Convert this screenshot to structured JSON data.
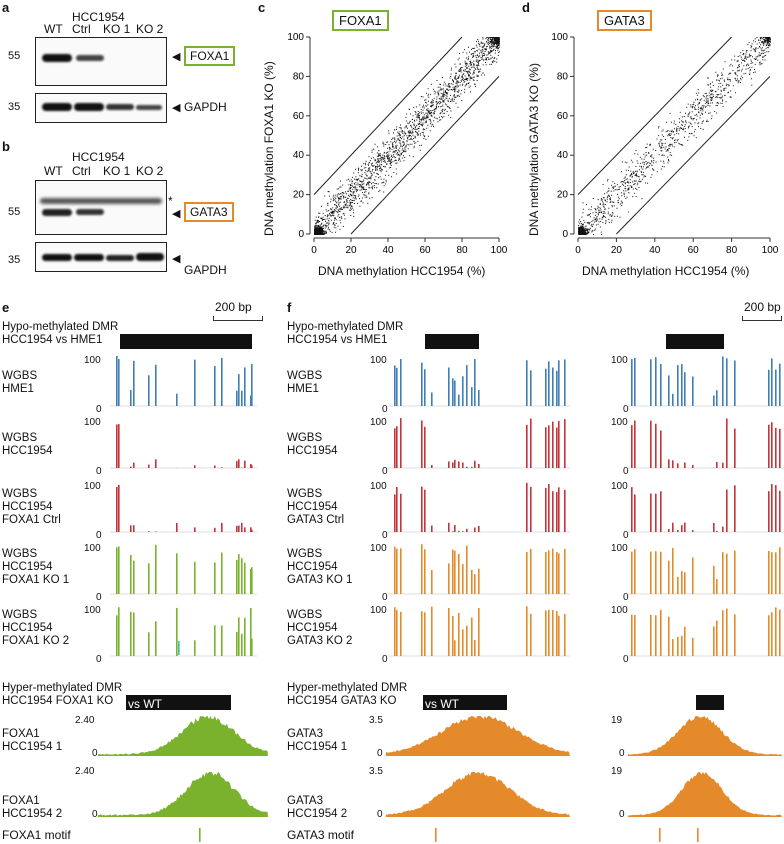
{
  "panel_labels": {
    "a": "a",
    "b": "b",
    "c": "c",
    "d": "d",
    "e": "e",
    "f": "f"
  },
  "blot_a": {
    "cell_line": "HCC1954",
    "lanes": [
      "WT",
      "Ctrl",
      "KO 1",
      "KO 2"
    ],
    "mw_top": "55",
    "mw_bottom": "35",
    "protein": "FOXA1",
    "loading": "GAPDH"
  },
  "blot_b": {
    "cell_line": "HCC1954",
    "lanes": [
      "WT",
      "Ctrl",
      "KO 1",
      "KO 2"
    ],
    "mw_top": "55",
    "mw_bottom": "35",
    "protein": "GATA3",
    "loading": "GAPDH",
    "asterisk": "*"
  },
  "scatter_c": {
    "title": "FOXA1",
    "xlabel": "DNA methylation HCC1954 (%)",
    "ylabel": "DNA methylation FOXA1 KO (%)"
  },
  "scatter_d": {
    "title": "GATA3",
    "xlabel": "DNA methylation HCC1954 (%)",
    "ylabel": "DNA methylation GATA3 KO (%)"
  },
  "chart_data": [
    {
      "type": "scatter",
      "title": "FOXA1",
      "xlabel": "DNA methylation HCC1954 (%)",
      "ylabel": "DNA methylation FOXA1 KO (%)",
      "xlim": [
        0,
        100
      ],
      "ylim": [
        0,
        100
      ],
      "ticks": [
        0,
        20,
        40,
        60,
        80,
        100
      ],
      "guide_lines": "y = x ± 20"
    },
    {
      "type": "scatter",
      "title": "GATA3",
      "xlabel": "DNA methylation HCC1954 (%)",
      "ylabel": "DNA methylation GATA3 KO (%)",
      "xlim": [
        0,
        100
      ],
      "ylim": [
        0,
        100
      ],
      "ticks": [
        0,
        20,
        40,
        60,
        80,
        100
      ],
      "guide_lines": "y = x ± 20"
    }
  ],
  "panel_e": {
    "scale": "200 bp",
    "hypo_dmr": [
      "Hypo-methylated DMR",
      "HCC1954 vs HME1"
    ],
    "tracks": [
      {
        "lines": [
          "WGBS",
          "HME1"
        ],
        "ymax": "100",
        "ymin": "0"
      },
      {
        "lines": [
          "WGBS",
          "HCC1954"
        ],
        "ymax": "100",
        "ymin": "0"
      },
      {
        "lines": [
          "WGBS",
          "HCC1954",
          "FOXA1 Ctrl"
        ],
        "ymax": "100",
        "ymin": "0"
      },
      {
        "lines": [
          "WGBS",
          "HCC1954",
          "FOXA1 KO 1"
        ],
        "ymax": "100",
        "ymin": "0"
      },
      {
        "lines": [
          "WGBS",
          "HCC1954",
          "FOXA1 KO 2"
        ],
        "ymax": "100",
        "ymin": "0"
      }
    ],
    "hyper_dmr": [
      "Hyper-methylated DMR",
      "HCC1954 FOXA1 KO",
      "vs WT"
    ],
    "chip": [
      {
        "lines": [
          "FOXA1",
          "HCC1954 1"
        ],
        "ymax": "2.40",
        "ymin": "0"
      },
      {
        "lines": [
          "FOXA1",
          "HCC1954 2"
        ],
        "ymax": "2.40",
        "ymin": "0"
      }
    ],
    "motif": "FOXA1 motif"
  },
  "panel_f": {
    "scale": "200 bp",
    "hypo_dmr": [
      "Hypo-methylated DMR",
      "HCC1954 vs HME1"
    ],
    "tracks": [
      {
        "lines": [
          "WGBS",
          "HME1"
        ],
        "ymax": "100",
        "ymin": "0"
      },
      {
        "lines": [
          "WGBS",
          "HCC1954"
        ],
        "ymax": "100",
        "ymin": "0"
      },
      {
        "lines": [
          "WGBS",
          "HCC1954",
          "GATA3 Ctrl"
        ],
        "ymax": "100",
        "ymin": "0"
      },
      {
        "lines": [
          "WGBS",
          "HCC1954",
          "GATA3 KO 1"
        ],
        "ymax": "100",
        "ymin": "0"
      },
      {
        "lines": [
          "WGBS",
          "HCC1954",
          "GATA3 KO 2"
        ],
        "ymax": "100",
        "ymin": "0"
      }
    ],
    "hyper_dmr": [
      "Hyper-methylated DMR",
      "HCC1954 GATA3 KO",
      "vs WT"
    ],
    "chip": [
      {
        "lines": [
          "GATA3",
          "HCC1954 1"
        ],
        "ymax": "3.5",
        "ymax2": "19",
        "ymin": "0"
      },
      {
        "lines": [
          "GATA3",
          "HCC1954 2"
        ],
        "ymax": "3.5",
        "ymax2": "19",
        "ymin": "0"
      }
    ],
    "motif": "GATA3 motif"
  },
  "colors": {
    "blue": "#3f7fb5",
    "red": "#c3343b",
    "green": "#7ab22e",
    "orange": "#e58a2a",
    "cyan": "#3bbfad",
    "dmr": "#111111"
  }
}
